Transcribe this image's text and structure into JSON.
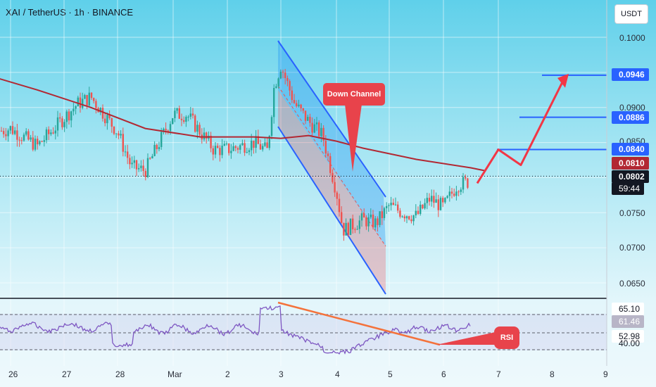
{
  "header": {
    "title": "XAI / TetherUS · 1h · BINANCE"
  },
  "toolbar": {
    "currency": "USDT"
  },
  "price_axis": {
    "labels": [
      "0.1000",
      "0.0900",
      "0.0850",
      "0.0750",
      "0.0700",
      "0.0650"
    ],
    "tags": [
      {
        "text": "0.0946",
        "color": "#2962ff"
      },
      {
        "text": "0.0886",
        "color": "#2962ff"
      },
      {
        "text": "0.0840",
        "color": "#2962ff"
      },
      {
        "text": "0.0810",
        "color": "#b22833"
      },
      {
        "text": "0.0802",
        "color": "#131722"
      },
      {
        "text": "59:44",
        "color": "#131722"
      }
    ]
  },
  "rsi_axis": {
    "labels": [
      {
        "text": "65.10",
        "color": "#131722",
        "bg": "#ffffff"
      },
      {
        "text": "61.46",
        "color": "#ffffff",
        "bg": "#7e57c2"
      },
      {
        "text": "52.98",
        "color": "#131722",
        "bg": "#ffffff"
      },
      {
        "text": "40.00",
        "color": "#131722",
        "bg": "#ffffff"
      }
    ]
  },
  "time_axis": {
    "labels": [
      "26",
      "27",
      "28",
      "Mar",
      "2",
      "3",
      "4",
      "5",
      "6",
      "7",
      "8",
      "9"
    ]
  },
  "annotations": {
    "down_channel": "Down Channel",
    "rsi": "RSI"
  },
  "colors": {
    "up": "#26a69a",
    "down": "#ef5350",
    "ma": "#b22833",
    "channel": "#2962ff",
    "projection": "#f23645"
  },
  "chart_data": {
    "type": "candlestick",
    "title": "XAI / TetherUS · 1h · BINANCE",
    "ylim": [
      0.063,
      0.104
    ],
    "last_price": 0.0802,
    "moving_average_value": 0.081,
    "targets": [
      0.084,
      0.0886,
      0.0946
    ],
    "price_path": [
      [
        "Feb 25 12:00",
        0.086
      ],
      [
        "Feb 26 00:00",
        0.087
      ],
      [
        "Feb 26 12:00",
        0.0845
      ],
      [
        "Feb 27 00:00",
        0.0885
      ],
      [
        "Feb 27 06:00",
        0.0905
      ],
      [
        "Feb 27 12:00",
        0.0915
      ],
      [
        "Feb 28 00:00",
        0.0865
      ],
      [
        "Feb 28 06:00",
        0.0815
      ],
      [
        "Feb 28 12:00",
        0.081
      ],
      [
        "Feb 28 18:00",
        0.085
      ],
      [
        "Mar 1 00:00",
        0.089
      ],
      [
        "Mar 1 06:00",
        0.089
      ],
      [
        "Mar 1 12:00",
        0.0865
      ],
      [
        "Mar 1 18:00",
        0.084
      ],
      [
        "Mar 2 00:00",
        0.084
      ],
      [
        "Mar 2 12:00",
        0.085
      ],
      [
        "Mar 2 18:00",
        0.0838
      ],
      [
        "Mar 2 21:00",
        0.093
      ],
      [
        "Mar 3 00:00",
        0.096
      ],
      [
        "Mar 3 06:00",
        0.0905
      ],
      [
        "Mar 3 12:00",
        0.088
      ],
      [
        "Mar 3 18:00",
        0.086
      ],
      [
        "Mar 4 00:00",
        0.078
      ],
      [
        "Mar 4 03:00",
        0.0725
      ],
      [
        "Mar 4 12:00",
        0.074
      ],
      [
        "Mar 4 18:00",
        0.0735
      ],
      [
        "Mar 5 00:00",
        0.076
      ],
      [
        "Mar 5 06:00",
        0.075
      ],
      [
        "Mar 5 12:00",
        0.0745
      ],
      [
        "Mar 5 18:00",
        0.077
      ],
      [
        "Mar 6 00:00",
        0.0758
      ],
      [
        "Mar 6 06:00",
        0.079
      ],
      [
        "Mar 6 12:00",
        0.0795
      ],
      [
        "Mar 6 18:00",
        0.0802
      ]
    ],
    "moving_average": [
      [
        "Feb 25 12:00",
        0.0948
      ],
      [
        "Feb 26 12:00",
        0.0925
      ],
      [
        "Feb 27 12:00",
        0.09
      ],
      [
        "Feb 28 12:00",
        0.087
      ],
      [
        "Mar 1 12:00",
        0.0858
      ],
      [
        "Mar 2 12:00",
        0.0858
      ],
      [
        "Mar 3 00:00",
        0.0856
      ],
      [
        "Mar 3 12:00",
        0.086
      ],
      [
        "Mar 4 00:00",
        0.0852
      ],
      [
        "Mar 4 12:00",
        0.0842
      ],
      [
        "Mar 5 12:00",
        0.0826
      ],
      [
        "Mar 6 12:00",
        0.0814
      ],
      [
        "Mar 6 18:00",
        0.081
      ]
    ],
    "rsi_levels": [
      65.1,
      61.46,
      52.98,
      40.0
    ]
  }
}
